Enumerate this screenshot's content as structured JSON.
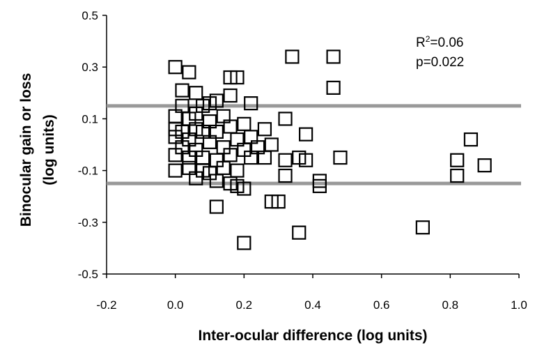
{
  "chart_data": {
    "type": "scatter",
    "xlabel": "Inter-ocular difference (log units)",
    "ylabel_lines": [
      "Binocular gain or loss",
      "(log units)"
    ],
    "xlim": [
      -0.2,
      1.0
    ],
    "ylim": [
      -0.5,
      0.5
    ],
    "x_ticks": [
      -0.2,
      0.0,
      0.2,
      0.4,
      0.6,
      0.8,
      1.0
    ],
    "x_tick_labels": [
      "-0.2",
      "0.0",
      "0.2",
      "0.4",
      "0.6",
      "0.8",
      "1.0"
    ],
    "y_ticks": [
      0.5,
      0.3,
      0.1,
      -0.1,
      -0.3,
      -0.5
    ],
    "y_tick_labels": [
      "0.5",
      "0.3",
      "0.1",
      "-0.1",
      "-0.3",
      "-0.5"
    ],
    "grid": false,
    "marker": "open-square",
    "colors": {
      "marker": "#000000",
      "reference_lines": "#999999"
    },
    "reference_lines_y": [
      0.15,
      -0.15
    ],
    "annotations": {
      "r2_prefix": "R",
      "r2_sup": "2",
      "r2_value": "=0.06",
      "p": "p=0.022"
    },
    "points": [
      {
        "x": 0.0,
        "y": 0.3
      },
      {
        "x": 0.04,
        "y": 0.28
      },
      {
        "x": 0.02,
        "y": 0.21
      },
      {
        "x": 0.06,
        "y": 0.2
      },
      {
        "x": 0.12,
        "y": 0.17
      },
      {
        "x": 0.16,
        "y": 0.26
      },
      {
        "x": 0.18,
        "y": 0.26
      },
      {
        "x": 0.16,
        "y": 0.19
      },
      {
        "x": 0.22,
        "y": 0.16
      },
      {
        "x": 0.02,
        "y": 0.15
      },
      {
        "x": 0.08,
        "y": 0.15
      },
      {
        "x": 0.1,
        "y": 0.16
      },
      {
        "x": 0.34,
        "y": 0.34
      },
      {
        "x": 0.46,
        "y": 0.34
      },
      {
        "x": 0.46,
        "y": 0.22
      },
      {
        "x": 0.0,
        "y": 0.11
      },
      {
        "x": 0.04,
        "y": 0.1
      },
      {
        "x": 0.06,
        "y": 0.12
      },
      {
        "x": 0.1,
        "y": 0.09
      },
      {
        "x": 0.14,
        "y": 0.11
      },
      {
        "x": 0.16,
        "y": 0.07
      },
      {
        "x": 0.2,
        "y": 0.08
      },
      {
        "x": 0.0,
        "y": 0.06
      },
      {
        "x": 0.02,
        "y": 0.05
      },
      {
        "x": 0.06,
        "y": 0.06
      },
      {
        "x": 0.08,
        "y": 0.05
      },
      {
        "x": 0.12,
        "y": 0.05
      },
      {
        "x": 0.26,
        "y": 0.06
      },
      {
        "x": 0.32,
        "y": 0.1
      },
      {
        "x": 0.38,
        "y": 0.04
      },
      {
        "x": 0.0,
        "y": 0.03
      },
      {
        "x": 0.04,
        "y": 0.02
      },
      {
        "x": 0.1,
        "y": 0.01
      },
      {
        "x": 0.18,
        "y": 0.02
      },
      {
        "x": 0.22,
        "y": 0.03
      },
      {
        "x": 0.02,
        "y": -0.01
      },
      {
        "x": 0.06,
        "y": -0.02
      },
      {
        "x": 0.14,
        "y": -0.01
      },
      {
        "x": 0.2,
        "y": -0.02
      },
      {
        "x": 0.24,
        "y": -0.01
      },
      {
        "x": 0.28,
        "y": 0.0
      },
      {
        "x": 0.0,
        "y": -0.04
      },
      {
        "x": 0.04,
        "y": -0.05
      },
      {
        "x": 0.08,
        "y": -0.05
      },
      {
        "x": 0.12,
        "y": -0.06
      },
      {
        "x": 0.16,
        "y": -0.04
      },
      {
        "x": 0.22,
        "y": -0.05
      },
      {
        "x": 0.26,
        "y": -0.05
      },
      {
        "x": 0.32,
        "y": -0.06
      },
      {
        "x": 0.36,
        "y": -0.05
      },
      {
        "x": 0.38,
        "y": -0.06
      },
      {
        "x": 0.48,
        "y": -0.05
      },
      {
        "x": 0.0,
        "y": -0.1
      },
      {
        "x": 0.04,
        "y": -0.09
      },
      {
        "x": 0.08,
        "y": -0.1
      },
      {
        "x": 0.1,
        "y": -0.11
      },
      {
        "x": 0.14,
        "y": -0.09
      },
      {
        "x": 0.18,
        "y": -0.1
      },
      {
        "x": 0.06,
        "y": -0.13
      },
      {
        "x": 0.12,
        "y": -0.14
      },
      {
        "x": 0.16,
        "y": -0.15
      },
      {
        "x": 0.18,
        "y": -0.16
      },
      {
        "x": 0.2,
        "y": -0.17
      },
      {
        "x": 0.32,
        "y": -0.12
      },
      {
        "x": 0.42,
        "y": -0.14
      },
      {
        "x": 0.42,
        "y": -0.16
      },
      {
        "x": 0.82,
        "y": -0.12
      },
      {
        "x": 0.82,
        "y": -0.06
      },
      {
        "x": 0.86,
        "y": 0.02
      },
      {
        "x": 0.9,
        "y": -0.08
      },
      {
        "x": 0.12,
        "y": -0.24
      },
      {
        "x": 0.28,
        "y": -0.22
      },
      {
        "x": 0.3,
        "y": -0.22
      },
      {
        "x": 0.72,
        "y": -0.32
      },
      {
        "x": 0.36,
        "y": -0.34
      },
      {
        "x": 0.2,
        "y": -0.38
      }
    ]
  }
}
